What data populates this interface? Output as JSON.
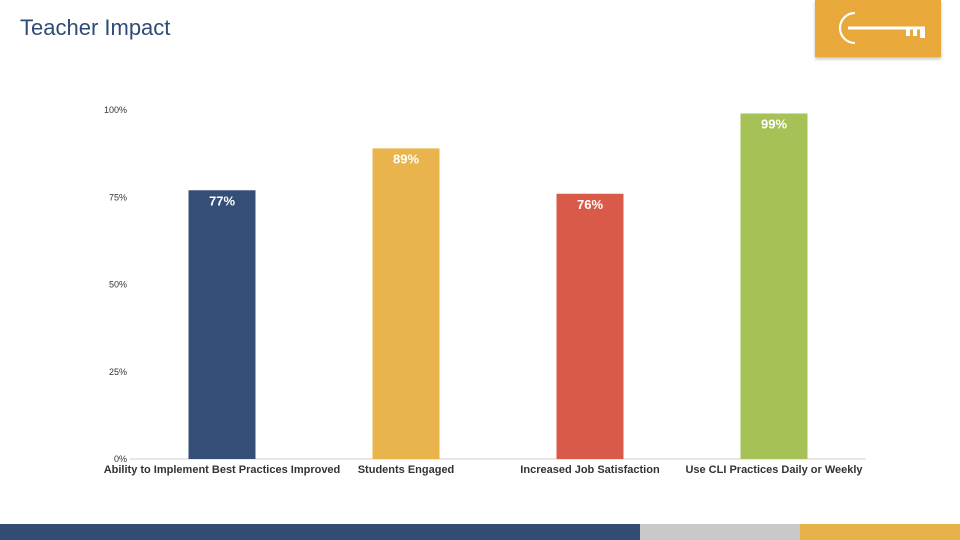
{
  "slide": {
    "title": "Teacher Impact"
  },
  "logo": {
    "name": "key-logo",
    "background": "#e8a93a"
  },
  "footer": {
    "colors": [
      "#324c74",
      "#c9c9c9",
      "#e8b24a"
    ]
  },
  "chart_data": {
    "type": "bar",
    "title": "",
    "xlabel": "",
    "ylabel": "",
    "ylim": [
      0,
      100
    ],
    "yticks": [
      0,
      25,
      50,
      75,
      100
    ],
    "ytick_labels": [
      "0%",
      "25%",
      "50%",
      "75%",
      "100%"
    ],
    "grid": false,
    "legend": "none",
    "categories": [
      "Ability to Implement Best Practices Improved",
      "Students Engaged",
      "Increased Job Satisfaction",
      "Use CLI Practices Daily or Weekly"
    ],
    "values": [
      77,
      89,
      76,
      99
    ],
    "data_labels": [
      "77%",
      "89%",
      "76%",
      "99%"
    ],
    "colors": [
      "#344e78",
      "#e9b44c",
      "#d95a48",
      "#a6c155"
    ]
  }
}
